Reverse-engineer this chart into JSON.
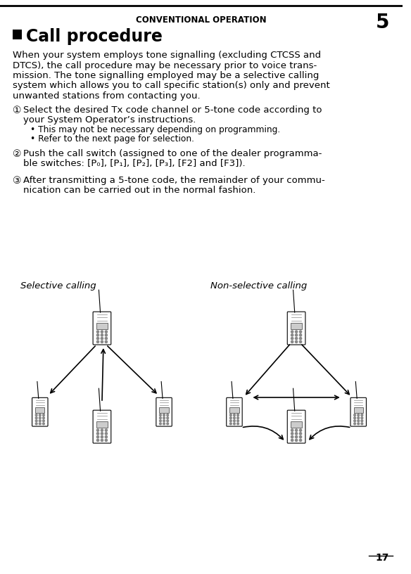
{
  "bg_color": "#ffffff",
  "page_number": "17",
  "header_text": "CONVENTIONAL OPERATION",
  "header_number": "5",
  "title_square_color": "#000000",
  "title_text": "Call procedure",
  "body_text": "When your system employs tone signalling (excluding CTCSS and\nDTCS), the call procedure may be necessary prior to voice trans-\nmission. The tone signalling employed may be a selective calling\nsystem which allows you to call specific station(s) only and prevent\nunwanted stations from contacting you.",
  "item1_circle": "①",
  "item1_main": "Select the desired Tx code channel or 5-tone code according to\nyour System Operator’s instructions.",
  "item1_bullet1": "• This may not be necessary depending on programming.",
  "item1_bullet2": "• Refer to the next page for selection.",
  "item2_circle": "②",
  "item2_main": "Push the call switch (assigned to one of the dealer programma-\nble switches: [P₀], [P₁], [P₂], [P₃], [F2] and [F3]).",
  "item3_circle": "③",
  "item3_main": "After transmitting a 5-tone code, the remainder of your commu-\nnication can be carried out in the normal fashion.",
  "label_selective": "Selective calling",
  "label_nonselective": "Non-selective calling",
  "top_line_color": "#000000",
  "text_color": "#000000"
}
